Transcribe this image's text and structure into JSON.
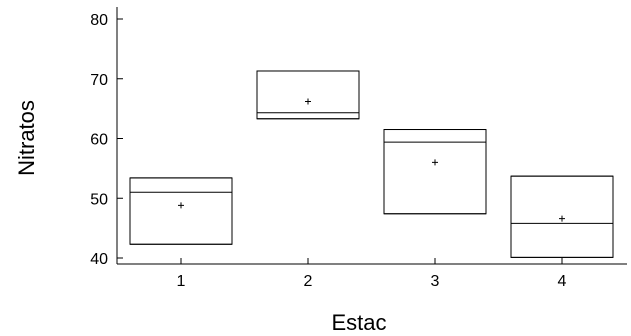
{
  "chart_data": {
    "type": "boxplot",
    "xlabel": "Estac",
    "ylabel": "Nitratos",
    "ylim": [
      39,
      82
    ],
    "yticks": [
      40,
      50,
      60,
      70,
      80
    ],
    "categories": [
      "1",
      "2",
      "3",
      "4"
    ],
    "boxes": [
      {
        "category": "1",
        "min": 42.3,
        "q1": 42.3,
        "median": 51.0,
        "q3": 53.4,
        "max": 53.4,
        "mean": 48.8
      },
      {
        "category": "2",
        "min": 63.3,
        "q1": 63.3,
        "median": 64.3,
        "q3": 71.3,
        "max": 71.3,
        "mean": 66.2
      },
      {
        "category": "3",
        "min": 47.4,
        "q1": 47.4,
        "median": 59.4,
        "q3": 61.5,
        "max": 61.5,
        "mean": 56.0
      },
      {
        "category": "4",
        "min": 40.1,
        "q1": 40.1,
        "median": 45.8,
        "q3": 53.7,
        "max": 53.7,
        "mean": 46.6
      }
    ],
    "grid": false,
    "colors": {
      "stroke": "#000000",
      "fill": "#ffffff"
    }
  }
}
